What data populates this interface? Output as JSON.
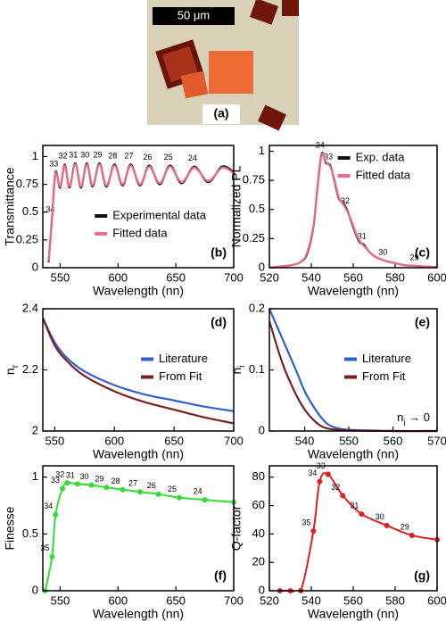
{
  "image": {
    "scale_bar": "50 μm",
    "label": "(a)"
  },
  "chart_data": [
    {
      "type": "line",
      "panel_label": "(b)",
      "panel_label_position": "lower right",
      "xlabel": "Wavelength (nn)",
      "ylabel": "Transmittance",
      "xlim": [
        535,
        700
      ],
      "ylim": [
        0,
        1.1
      ],
      "xticks": [
        550,
        600,
        650,
        700
      ],
      "yticks": [
        0,
        0.25,
        0.5,
        0.75,
        1
      ],
      "legend": "lower right",
      "series": [
        {
          "name": "Experimental data",
          "color": "#111111",
          "x": [
            540,
            543,
            546,
            550,
            554,
            558,
            563,
            568,
            573,
            578,
            584,
            590,
            597,
            604,
            611,
            619,
            627,
            636,
            645,
            655,
            666,
            678,
            690,
            700
          ],
          "values": [
            0.05,
            0.45,
            0.86,
            0.72,
            0.93,
            0.72,
            0.94,
            0.72,
            0.94,
            0.73,
            0.94,
            0.73,
            0.93,
            0.74,
            0.93,
            0.74,
            0.92,
            0.75,
            0.92,
            0.76,
            0.91,
            0.77,
            0.91,
            0.86
          ],
          "point_labels": [
            null,
            "34",
            "33",
            null,
            "32",
            null,
            "31",
            null,
            "30",
            null,
            "29",
            null,
            "28",
            null,
            "27",
            null,
            "26",
            null,
            "25",
            null,
            "24",
            null,
            null,
            null
          ]
        },
        {
          "name": "Fitted data",
          "color": "#ee6b86",
          "x": [
            540,
            543,
            546,
            550,
            554,
            558,
            563,
            568,
            573,
            578,
            584,
            590,
            597,
            604,
            611,
            619,
            627,
            636,
            645,
            655,
            666,
            678,
            690,
            700
          ],
          "values": [
            0.06,
            0.44,
            0.85,
            0.73,
            0.92,
            0.73,
            0.93,
            0.73,
            0.93,
            0.74,
            0.93,
            0.74,
            0.92,
            0.75,
            0.92,
            0.75,
            0.91,
            0.76,
            0.91,
            0.77,
            0.9,
            0.78,
            0.9,
            0.85
          ]
        }
      ]
    },
    {
      "type": "line",
      "panel_label": "(c)",
      "panel_label_position": "lower right",
      "xlabel": "Wavelength (nn)",
      "ylabel": "Normalized PL",
      "xlim": [
        520,
        600
      ],
      "ylim": [
        0,
        1.05
      ],
      "xticks": [
        520,
        540,
        560,
        580,
        600
      ],
      "yticks": [
        0,
        0.25,
        0.5,
        0.75,
        1
      ],
      "legend": "upper right",
      "series": [
        {
          "name": "Exp. data",
          "color": "#111111",
          "x": [
            520,
            530,
            535,
            538,
            541,
            543,
            545,
            547,
            549,
            551,
            553,
            555,
            557,
            559,
            561,
            563,
            565,
            567,
            570,
            575,
            580,
            585,
            590,
            595,
            600
          ],
          "values": [
            0,
            0.02,
            0.05,
            0.12,
            0.35,
            0.7,
            0.98,
            0.9,
            0.88,
            0.75,
            0.6,
            0.56,
            0.5,
            0.4,
            0.3,
            0.22,
            0.2,
            0.15,
            0.1,
            0.06,
            0.04,
            0.02,
            0.015,
            0.01,
            0.005
          ],
          "point_labels": [
            null,
            null,
            null,
            null,
            null,
            null,
            "34",
            null,
            "33",
            null,
            null,
            null,
            "32",
            null,
            null,
            null,
            "31",
            null,
            null,
            "30",
            null,
            null,
            "29",
            null,
            null
          ]
        },
        {
          "name": "Fitted data",
          "color": "#ee6b86",
          "x": [
            520,
            530,
            535,
            538,
            541,
            543,
            545,
            547,
            549,
            551,
            553,
            555,
            557,
            559,
            561,
            563,
            565,
            567,
            570,
            575,
            580,
            585,
            590,
            595,
            600
          ],
          "values": [
            0,
            0.02,
            0.05,
            0.13,
            0.36,
            0.69,
            0.97,
            0.91,
            0.87,
            0.76,
            0.61,
            0.55,
            0.49,
            0.41,
            0.31,
            0.23,
            0.19,
            0.15,
            0.1,
            0.06,
            0.04,
            0.02,
            0.015,
            0.01,
            0.005
          ]
        }
      ]
    },
    {
      "type": "line",
      "panel_label": "(d)",
      "panel_label_position": "upper right",
      "xlabel": "Wavelength (nn)",
      "ylabel": [
        "n",
        "r"
      ],
      "xlim": [
        540,
        700
      ],
      "ylim": [
        2,
        2.4
      ],
      "xticks": [
        550,
        600,
        650,
        700
      ],
      "yticks": [
        2,
        2.2,
        2.4
      ],
      "legend": "center right",
      "series": [
        {
          "name": "Literature",
          "color": "#2f5fd0",
          "x": [
            540,
            550,
            560,
            575,
            600,
            625,
            650,
            675,
            700
          ],
          "values": [
            2.37,
            2.29,
            2.24,
            2.195,
            2.15,
            2.12,
            2.1,
            2.08,
            2.065
          ]
        },
        {
          "name": "From Fit",
          "color": "#7a1f1f",
          "x": [
            540,
            550,
            560,
            575,
            600,
            625,
            650,
            675,
            700
          ],
          "values": [
            2.37,
            2.28,
            2.23,
            2.18,
            2.13,
            2.095,
            2.07,
            2.045,
            2.025
          ]
        }
      ]
    },
    {
      "type": "line",
      "panel_label": "(e)",
      "panel_label_position": "upper right",
      "xlabel": "Wavelength (nn)",
      "ylabel": [
        "n",
        "i"
      ],
      "xlim": [
        532,
        570
      ],
      "ylim": [
        0,
        0.2
      ],
      "xticks": [
        540,
        550,
        560,
        570
      ],
      "yticks": [
        0,
        0.1,
        0.2
      ],
      "legend": "center right",
      "annotation": [
        "n",
        "i",
        " → 0"
      ],
      "series": [
        {
          "name": "Literature",
          "color": "#2f5fd0",
          "x": [
            532,
            535,
            538,
            540,
            542,
            544,
            546,
            550,
            560,
            570
          ],
          "values": [
            0.2,
            0.15,
            0.1,
            0.065,
            0.04,
            0.02,
            0.008,
            0.002,
            0,
            0
          ]
        },
        {
          "name": "From Fit",
          "color": "#7a1f1f",
          "x": [
            532,
            535,
            538,
            540,
            542,
            544,
            546,
            550,
            560,
            570
          ],
          "values": [
            0.18,
            0.11,
            0.06,
            0.035,
            0.018,
            0.007,
            0.003,
            0.001,
            0,
            0
          ]
        }
      ]
    },
    {
      "type": "line",
      "panel_label": "(f)",
      "panel_label_position": "lower right",
      "xlabel": "Wavelength (nn)",
      "ylabel": "Finesse",
      "xlim": [
        535,
        700
      ],
      "ylim": [
        0,
        1.1
      ],
      "xticks": [
        550,
        600,
        650,
        700
      ],
      "yticks": [
        0,
        0.5,
        1
      ],
      "markers": true,
      "series": [
        {
          "name": null,
          "color": "#33dd33",
          "x": [
            537,
            543,
            546,
            552,
            556,
            565,
            577,
            590,
            604,
            619,
            635,
            653,
            675,
            700
          ],
          "values": [
            0,
            0.3,
            0.67,
            0.9,
            0.95,
            0.94,
            0.93,
            0.91,
            0.89,
            0.87,
            0.85,
            0.82,
            0.8,
            0.78
          ],
          "point_labels": [
            null,
            "35",
            "34",
            "33",
            "32",
            "31",
            "30",
            "29",
            "28",
            "27",
            "26",
            "25",
            "24",
            null
          ]
        }
      ]
    },
    {
      "type": "line",
      "panel_label": "(g)",
      "panel_label_position": "lower right",
      "xlabel": "Wavelength (nn)",
      "ylabel": "Q-factor",
      "xlim": [
        520,
        600
      ],
      "ylim": [
        0,
        88
      ],
      "xticks": [
        520,
        540,
        560,
        580,
        600
      ],
      "yticks": [
        0,
        20,
        40,
        60,
        80
      ],
      "markers": true,
      "series": [
        {
          "name": null,
          "color": "#e02020",
          "x": [
            525,
            530,
            535,
            541,
            544,
            548,
            555,
            564,
            576,
            588,
            600
          ],
          "values": [
            0,
            0,
            0,
            42,
            77,
            82,
            67,
            54,
            46,
            39,
            36
          ],
          "point_labels": [
            null,
            null,
            null,
            "35",
            "34",
            "33",
            "32",
            "31",
            "30",
            "29",
            null
          ]
        }
      ]
    }
  ]
}
